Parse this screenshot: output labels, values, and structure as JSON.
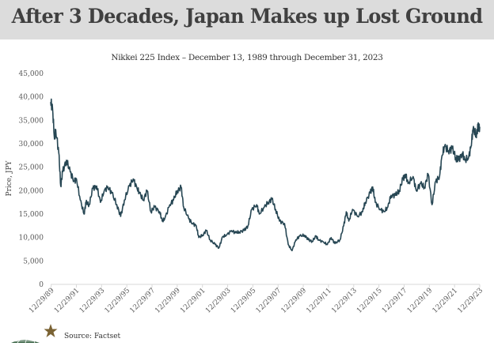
{
  "header": {
    "title": "After 3 Decades, Japan Makes up Lost Ground"
  },
  "footer": {
    "source": "Source: Factset",
    "logo_icon": "firm-logo-star-globe-icon",
    "star_color": "#7a6233",
    "globe_color": "#2e5b3a"
  },
  "colors": {
    "line": "#264653",
    "header_bg": "#dcdcdc",
    "axis": "#d9d9d9"
  },
  "chart_data": {
    "type": "line",
    "title": "Nikkei 225 Index  – December 13, 1989 through December 31, 2023",
    "xlabel": "",
    "ylabel": "Price, JPY",
    "ylim": [
      0,
      45000
    ],
    "xlim": [
      1989.95,
      2023.99
    ],
    "yticks": [
      0,
      5000,
      10000,
      15000,
      20000,
      25000,
      30000,
      35000,
      40000,
      45000
    ],
    "ytick_labels": [
      "0",
      "5,000",
      "10,000",
      "15,000",
      "20,000",
      "25,000",
      "30,000",
      "35,000",
      "40,000",
      "45,000"
    ],
    "xticks": [
      1989.99,
      1991.99,
      1993.99,
      1995.99,
      1997.99,
      1999.99,
      2001.99,
      2003.99,
      2005.99,
      2007.99,
      2009.99,
      2011.99,
      2013.99,
      2015.99,
      2017.99,
      2019.99,
      2021.99,
      2023.99
    ],
    "xtick_labels": [
      "12/29/89",
      "12/29/91",
      "12/29/93",
      "12/29/95",
      "12/29/97",
      "12/29/99",
      "12/29/01",
      "12/29/03",
      "12/29/05",
      "12/29/07",
      "12/29/09",
      "12/29/11",
      "12/29/13",
      "12/29/15",
      "12/29/17",
      "12/29/19",
      "12/29/21",
      "12/29/23"
    ],
    "grid": false,
    "legend": "none",
    "series": [
      {
        "name": "Nikkei 225",
        "x": [
          1989.95,
          1990.1,
          1990.25,
          1990.35,
          1990.6,
          1990.75,
          1990.9,
          1991.2,
          1991.5,
          1991.8,
          1992.0,
          1992.3,
          1992.6,
          1992.75,
          1993.0,
          1993.3,
          1993.6,
          1993.9,
          1994.2,
          1994.5,
          1994.8,
          1995.2,
          1995.5,
          1995.8,
          1996.2,
          1996.5,
          1996.8,
          1997.0,
          1997.3,
          1997.6,
          1997.9,
          1998.2,
          1998.6,
          1998.8,
          1999.0,
          1999.4,
          1999.7,
          2000.0,
          2000.3,
          2000.5,
          2000.9,
          2001.2,
          2001.5,
          2001.7,
          2002.0,
          2002.3,
          2002.6,
          2003.0,
          2003.3,
          2003.6,
          2003.9,
          2004.3,
          2004.6,
          2004.9,
          2005.3,
          2005.6,
          2005.9,
          2006.3,
          2006.5,
          2006.9,
          2007.2,
          2007.5,
          2007.8,
          2008.1,
          2008.5,
          2008.8,
          2009.1,
          2009.4,
          2009.7,
          2010.1,
          2010.4,
          2010.7,
          2011.0,
          2011.2,
          2011.6,
          2011.9,
          2012.2,
          2012.5,
          2012.9,
          2013.2,
          2013.4,
          2013.6,
          2013.9,
          2014.3,
          2014.7,
          2014.9,
          2015.3,
          2015.5,
          2015.7,
          2016.1,
          2016.4,
          2016.7,
          2016.95,
          2017.3,
          2017.6,
          2017.9,
          2018.1,
          2018.3,
          2018.7,
          2018.95,
          2019.3,
          2019.6,
          2019.9,
          2020.2,
          2020.5,
          2020.8,
          2021.0,
          2021.2,
          2021.5,
          2021.8,
          2022.1,
          2022.3,
          2022.6,
          2022.8,
          2023.1,
          2023.3,
          2023.45,
          2023.7,
          2023.85,
          2023.99
        ],
        "values": [
          38900,
          37500,
          31000,
          33000,
          28000,
          21000,
          24000,
          26500,
          24000,
          22000,
          22500,
          18000,
          15000,
          17500,
          17000,
          20500,
          21000,
          17500,
          20000,
          20800,
          19500,
          17000,
          14500,
          18000,
          21000,
          22500,
          20500,
          19500,
          18000,
          20000,
          15500,
          16500,
          15500,
          13500,
          14000,
          17000,
          18000,
          20000,
          20700,
          16500,
          14000,
          13000,
          12500,
          10000,
          10500,
          11500,
          9500,
          8500,
          7800,
          10200,
          10500,
          11500,
          11000,
          11200,
          11500,
          12500,
          16000,
          17000,
          15000,
          16500,
          17500,
          18200,
          16000,
          13500,
          13000,
          8500,
          7200,
          9500,
          10300,
          10500,
          9500,
          9200,
          10300,
          9500,
          9000,
          8500,
          10000,
          8700,
          9500,
          12500,
          15500,
          13500,
          16000,
          14500,
          15500,
          17500,
          19500,
          20800,
          17500,
          16000,
          15500,
          16500,
          19000,
          19000,
          20000,
          22500,
          23500,
          21500,
          23000,
          20000,
          21500,
          20700,
          23500,
          17000,
          22000,
          23000,
          27500,
          29500,
          28500,
          29000,
          27000,
          26500,
          28000,
          26500,
          27000,
          29500,
          33000,
          32000,
          33500,
          33600
        ]
      }
    ]
  }
}
